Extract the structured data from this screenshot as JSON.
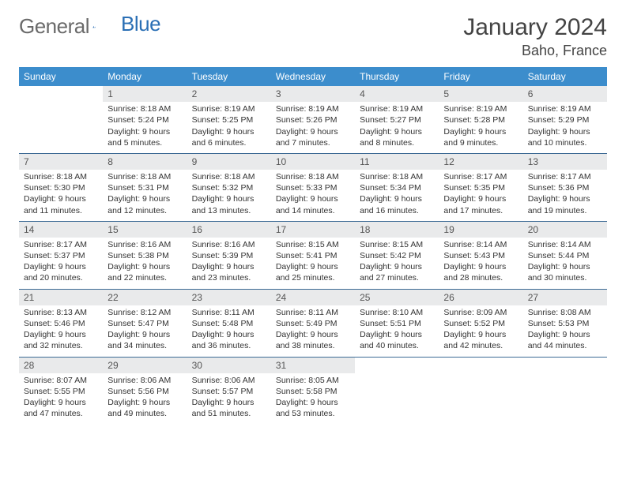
{
  "logo": {
    "name": "General",
    "accent": "Blue"
  },
  "title": "January 2024",
  "location": "Baho, France",
  "colors": {
    "header_bg": "#3c8dcc",
    "header_fg": "#ffffff",
    "daynum_bg": "#e9eaeb",
    "rule": "#3c6a94",
    "logo_gray": "#6a6a6a",
    "logo_blue": "#2a6fb5"
  },
  "weekdays": [
    "Sunday",
    "Monday",
    "Tuesday",
    "Wednesday",
    "Thursday",
    "Friday",
    "Saturday"
  ],
  "weeks": [
    [
      null,
      {
        "n": "1",
        "sr": "Sunrise: 8:18 AM",
        "ss": "Sunset: 5:24 PM",
        "dl": "Daylight: 9 hours and 5 minutes."
      },
      {
        "n": "2",
        "sr": "Sunrise: 8:19 AM",
        "ss": "Sunset: 5:25 PM",
        "dl": "Daylight: 9 hours and 6 minutes."
      },
      {
        "n": "3",
        "sr": "Sunrise: 8:19 AM",
        "ss": "Sunset: 5:26 PM",
        "dl": "Daylight: 9 hours and 7 minutes."
      },
      {
        "n": "4",
        "sr": "Sunrise: 8:19 AM",
        "ss": "Sunset: 5:27 PM",
        "dl": "Daylight: 9 hours and 8 minutes."
      },
      {
        "n": "5",
        "sr": "Sunrise: 8:19 AM",
        "ss": "Sunset: 5:28 PM",
        "dl": "Daylight: 9 hours and 9 minutes."
      },
      {
        "n": "6",
        "sr": "Sunrise: 8:19 AM",
        "ss": "Sunset: 5:29 PM",
        "dl": "Daylight: 9 hours and 10 minutes."
      }
    ],
    [
      {
        "n": "7",
        "sr": "Sunrise: 8:18 AM",
        "ss": "Sunset: 5:30 PM",
        "dl": "Daylight: 9 hours and 11 minutes."
      },
      {
        "n": "8",
        "sr": "Sunrise: 8:18 AM",
        "ss": "Sunset: 5:31 PM",
        "dl": "Daylight: 9 hours and 12 minutes."
      },
      {
        "n": "9",
        "sr": "Sunrise: 8:18 AM",
        "ss": "Sunset: 5:32 PM",
        "dl": "Daylight: 9 hours and 13 minutes."
      },
      {
        "n": "10",
        "sr": "Sunrise: 8:18 AM",
        "ss": "Sunset: 5:33 PM",
        "dl": "Daylight: 9 hours and 14 minutes."
      },
      {
        "n": "11",
        "sr": "Sunrise: 8:18 AM",
        "ss": "Sunset: 5:34 PM",
        "dl": "Daylight: 9 hours and 16 minutes."
      },
      {
        "n": "12",
        "sr": "Sunrise: 8:17 AM",
        "ss": "Sunset: 5:35 PM",
        "dl": "Daylight: 9 hours and 17 minutes."
      },
      {
        "n": "13",
        "sr": "Sunrise: 8:17 AM",
        "ss": "Sunset: 5:36 PM",
        "dl": "Daylight: 9 hours and 19 minutes."
      }
    ],
    [
      {
        "n": "14",
        "sr": "Sunrise: 8:17 AM",
        "ss": "Sunset: 5:37 PM",
        "dl": "Daylight: 9 hours and 20 minutes."
      },
      {
        "n": "15",
        "sr": "Sunrise: 8:16 AM",
        "ss": "Sunset: 5:38 PM",
        "dl": "Daylight: 9 hours and 22 minutes."
      },
      {
        "n": "16",
        "sr": "Sunrise: 8:16 AM",
        "ss": "Sunset: 5:39 PM",
        "dl": "Daylight: 9 hours and 23 minutes."
      },
      {
        "n": "17",
        "sr": "Sunrise: 8:15 AM",
        "ss": "Sunset: 5:41 PM",
        "dl": "Daylight: 9 hours and 25 minutes."
      },
      {
        "n": "18",
        "sr": "Sunrise: 8:15 AM",
        "ss": "Sunset: 5:42 PM",
        "dl": "Daylight: 9 hours and 27 minutes."
      },
      {
        "n": "19",
        "sr": "Sunrise: 8:14 AM",
        "ss": "Sunset: 5:43 PM",
        "dl": "Daylight: 9 hours and 28 minutes."
      },
      {
        "n": "20",
        "sr": "Sunrise: 8:14 AM",
        "ss": "Sunset: 5:44 PM",
        "dl": "Daylight: 9 hours and 30 minutes."
      }
    ],
    [
      {
        "n": "21",
        "sr": "Sunrise: 8:13 AM",
        "ss": "Sunset: 5:46 PM",
        "dl": "Daylight: 9 hours and 32 minutes."
      },
      {
        "n": "22",
        "sr": "Sunrise: 8:12 AM",
        "ss": "Sunset: 5:47 PM",
        "dl": "Daylight: 9 hours and 34 minutes."
      },
      {
        "n": "23",
        "sr": "Sunrise: 8:11 AM",
        "ss": "Sunset: 5:48 PM",
        "dl": "Daylight: 9 hours and 36 minutes."
      },
      {
        "n": "24",
        "sr": "Sunrise: 8:11 AM",
        "ss": "Sunset: 5:49 PM",
        "dl": "Daylight: 9 hours and 38 minutes."
      },
      {
        "n": "25",
        "sr": "Sunrise: 8:10 AM",
        "ss": "Sunset: 5:51 PM",
        "dl": "Daylight: 9 hours and 40 minutes."
      },
      {
        "n": "26",
        "sr": "Sunrise: 8:09 AM",
        "ss": "Sunset: 5:52 PM",
        "dl": "Daylight: 9 hours and 42 minutes."
      },
      {
        "n": "27",
        "sr": "Sunrise: 8:08 AM",
        "ss": "Sunset: 5:53 PM",
        "dl": "Daylight: 9 hours and 44 minutes."
      }
    ],
    [
      {
        "n": "28",
        "sr": "Sunrise: 8:07 AM",
        "ss": "Sunset: 5:55 PM",
        "dl": "Daylight: 9 hours and 47 minutes."
      },
      {
        "n": "29",
        "sr": "Sunrise: 8:06 AM",
        "ss": "Sunset: 5:56 PM",
        "dl": "Daylight: 9 hours and 49 minutes."
      },
      {
        "n": "30",
        "sr": "Sunrise: 8:06 AM",
        "ss": "Sunset: 5:57 PM",
        "dl": "Daylight: 9 hours and 51 minutes."
      },
      {
        "n": "31",
        "sr": "Sunrise: 8:05 AM",
        "ss": "Sunset: 5:58 PM",
        "dl": "Daylight: 9 hours and 53 minutes."
      },
      null,
      null,
      null
    ]
  ]
}
